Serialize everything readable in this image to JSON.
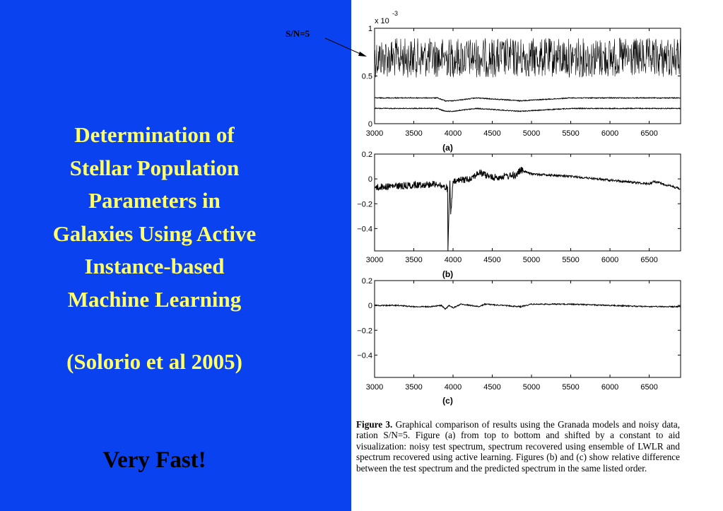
{
  "slide": {
    "title_lines": [
      "Determination of",
      "Stellar Population",
      "Parameters in",
      "Galaxies Using Active",
      "Instance-based",
      "Machine Learning"
    ],
    "citation": "(Solorio et al 2005)",
    "tagline": "Very Fast!",
    "colors": {
      "background": "#0b42f0",
      "title": "#ffff66",
      "tagline": "#000000"
    }
  },
  "annotation": {
    "label": "S/N=5"
  },
  "figure": {
    "caption_label": "Figure 3.",
    "caption_text": "Graphical comparison of results using the Granada models and noisy data, ration S/N=5. Figure (a) from top to bottom and shifted by a constant to aid visualization: noisy test spectrum, spectrum recovered using ensemble of LWLR and spectrum recovered using active learning. Figures (b) and (c) show relative difference between the test spectrum and the predicted spectrum in the same listed order."
  },
  "chart_data": [
    {
      "type": "line",
      "panel_label": "(a)",
      "y_exponent_label": "x 10",
      "y_exponent_power": "-3",
      "x_ticks": [
        3000,
        3500,
        4000,
        4500,
        5000,
        5500,
        6000,
        6500
      ],
      "y_ticks": [
        0,
        0.5,
        1
      ],
      "xlim": [
        3000,
        6900
      ],
      "ylim": [
        0,
        1
      ],
      "series": [
        {
          "offset": 0.69,
          "values": [
            [
              3000,
              0.69
            ],
            [
              3500,
              0.69
            ],
            [
              4000,
              0.69
            ],
            [
              4500,
              0.69
            ],
            [
              5000,
              0.69
            ],
            [
              5500,
              0.69
            ],
            [
              6000,
              0.69
            ],
            [
              6500,
              0.69
            ],
            [
              6900,
              0.69
            ]
          ]
        },
        {
          "offset": 0.27,
          "values": [
            [
              3000,
              0.27
            ],
            [
              3500,
              0.27
            ],
            [
              3800,
              0.27
            ],
            [
              3900,
              0.24
            ],
            [
              4000,
              0.24
            ],
            [
              4300,
              0.27
            ],
            [
              4850,
              0.24
            ],
            [
              5500,
              0.27
            ],
            [
              6000,
              0.27
            ],
            [
              6500,
              0.27
            ],
            [
              6900,
              0.27
            ]
          ]
        },
        {
          "offset": 0.16,
          "values": [
            [
              3000,
              0.16
            ],
            [
              3500,
              0.16
            ],
            [
              3800,
              0.16
            ],
            [
              3900,
              0.13
            ],
            [
              4000,
              0.13
            ],
            [
              4300,
              0.16
            ],
            [
              4850,
              0.13
            ],
            [
              5500,
              0.16
            ],
            [
              6000,
              0.16
            ],
            [
              6500,
              0.16
            ],
            [
              6900,
              0.16
            ]
          ]
        }
      ],
      "grid": false
    },
    {
      "type": "line",
      "panel_label": "(b)",
      "x_ticks": [
        3000,
        3500,
        4000,
        4500,
        5000,
        5500,
        6000,
        6500
      ],
      "y_ticks": [
        "0.2",
        "0",
        "−0.2",
        "−0.4"
      ],
      "xlim": [
        3000,
        6900
      ],
      "ylim": [
        -0.58,
        0.2
      ],
      "series": [
        {
          "values": [
            [
              3000,
              -0.07
            ],
            [
              3200,
              -0.06
            ],
            [
              3500,
              -0.05
            ],
            [
              3800,
              -0.04
            ],
            [
              3930,
              -0.08
            ],
            [
              3935,
              -0.58
            ],
            [
              3960,
              -0.02
            ],
            [
              3970,
              -0.28
            ],
            [
              4000,
              -0.03
            ],
            [
              4100,
              -0.01
            ],
            [
              4200,
              0.0
            ],
            [
              4340,
              0.05
            ],
            [
              4500,
              0.01
            ],
            [
              4800,
              0.03
            ],
            [
              4860,
              0.07
            ],
            [
              5000,
              0.04
            ],
            [
              5500,
              0.02
            ],
            [
              6000,
              -0.01
            ],
            [
              6500,
              -0.04
            ],
            [
              6560,
              -0.02
            ],
            [
              6900,
              -0.08
            ]
          ]
        }
      ],
      "grid": false
    },
    {
      "type": "line",
      "panel_label": "(c)",
      "x_ticks": [
        3000,
        3500,
        4000,
        4500,
        5000,
        5500,
        6000,
        6500
      ],
      "y_ticks": [
        "0.2",
        "0",
        "−0.2",
        "−0.4"
      ],
      "xlim": [
        3000,
        6900
      ],
      "ylim": [
        -0.58,
        0.2
      ],
      "series": [
        {
          "values": [
            [
              3000,
              0.0
            ],
            [
              3300,
              0.0
            ],
            [
              3500,
              -0.01
            ],
            [
              3700,
              -0.01
            ],
            [
              3850,
              0.0
            ],
            [
              3900,
              -0.03
            ],
            [
              3950,
              0.0
            ],
            [
              4000,
              -0.02
            ],
            [
              4100,
              0.01
            ],
            [
              4340,
              -0.01
            ],
            [
              4400,
              0.01
            ],
            [
              4860,
              -0.01
            ],
            [
              5000,
              0.01
            ],
            [
              5500,
              0.01
            ],
            [
              6000,
              0.0
            ],
            [
              6500,
              -0.01
            ],
            [
              6900,
              -0.01
            ]
          ]
        }
      ],
      "grid": false
    }
  ]
}
